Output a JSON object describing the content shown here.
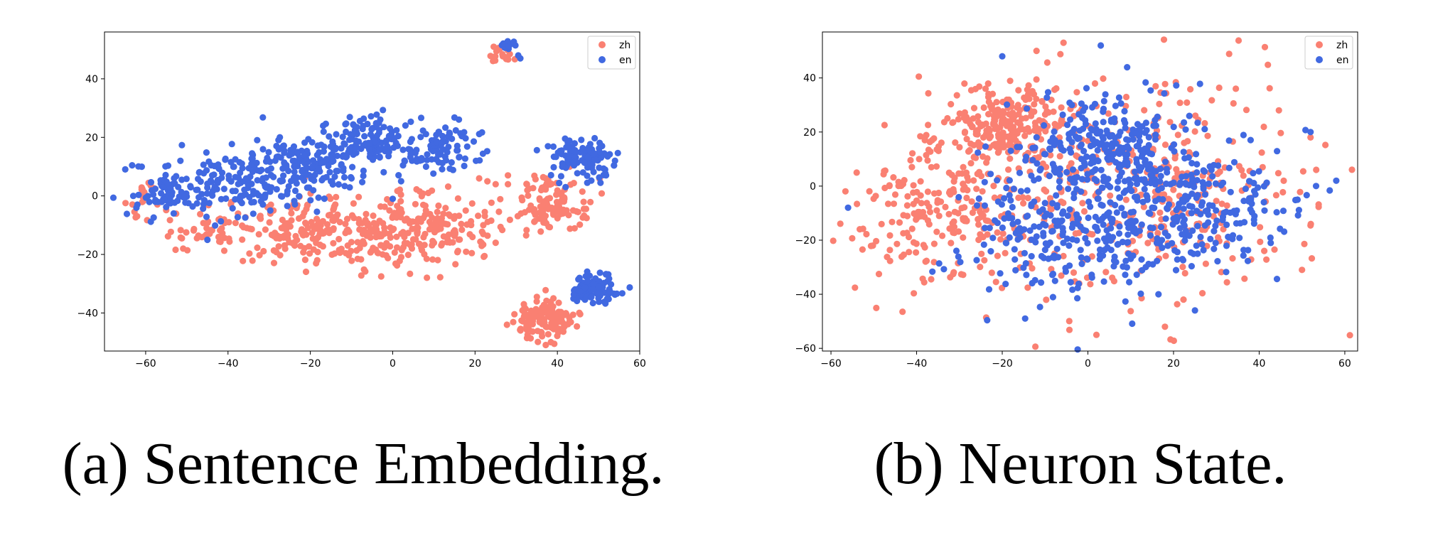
{
  "colors": {
    "zh": "#fa8072",
    "en": "#4169e1"
  },
  "chart_data": [
    {
      "type": "scatter",
      "title": "",
      "xlabel": "",
      "ylabel": "",
      "caption": "(a) Sentence Embedding.",
      "xlim": [
        -70,
        60
      ],
      "ylim": [
        -53,
        56
      ],
      "xticks": [
        -60,
        -40,
        -20,
        0,
        20,
        40,
        60
      ],
      "yticks": [
        -40,
        -20,
        0,
        20,
        40
      ],
      "xtick_labels": [
        "−60",
        "−40",
        "−20",
        "0",
        "20",
        "40",
        "60"
      ],
      "ytick_labels": [
        "−40",
        "−20",
        "0",
        "20",
        "40"
      ],
      "legend": {
        "position": "top-right",
        "entries": [
          "zh",
          "en"
        ]
      },
      "series": [
        {
          "name": "zh",
          "color": "#fa8072",
          "clusters": [
            {
              "cx": -12,
              "cy": -12,
              "sx": 17,
              "sy": 6,
              "n": 320
            },
            {
              "cx": 12,
              "cy": -10,
              "sx": 6,
              "sy": 6,
              "n": 90
            },
            {
              "cx": -45,
              "cy": -12,
              "sx": 5,
              "sy": 3,
              "n": 30
            },
            {
              "cx": -60,
              "cy": 1,
              "sx": 2,
              "sy": 4,
              "n": 18
            },
            {
              "cx": 38,
              "cy": -3,
              "sx": 5,
              "sy": 5,
              "n": 110
            },
            {
              "cx": 37,
              "cy": -42,
              "sx": 4,
              "sy": 3.5,
              "n": 120
            },
            {
              "cx": 26,
              "cy": 48,
              "sx": 1.5,
              "sy": 1.3,
              "n": 16
            }
          ],
          "points": [
            [
              21,
              6
            ],
            [
              23,
              5
            ],
            [
              25,
              4
            ],
            [
              28,
              4
            ],
            [
              22,
              -10
            ],
            [
              25,
              -16
            ],
            [
              43,
              10
            ],
            [
              28,
              7
            ]
          ]
        },
        {
          "name": "en",
          "color": "#4169e1",
          "clusters": [
            {
              "cx": -40,
              "cy": 3,
              "sx": 10,
              "sy": 5,
              "n": 170
            },
            {
              "cx": -20,
              "cy": 12,
              "sx": 8,
              "sy": 5,
              "n": 160
            },
            {
              "cx": -6,
              "cy": 19,
              "sx": 4,
              "sy": 4,
              "n": 110
            },
            {
              "cx": 12,
              "cy": 17,
              "sx": 4.5,
              "sy": 4,
              "n": 95
            },
            {
              "cx": 46,
              "cy": 13,
              "sx": 4,
              "sy": 3,
              "n": 110
            },
            {
              "cx": 49,
              "cy": -32,
              "sx": 3,
              "sy": 2.5,
              "n": 90
            },
            {
              "cx": 28,
              "cy": 51,
              "sx": 1,
              "sy": 0.9,
              "n": 14
            },
            {
              "cx": -56,
              "cy": 0,
              "sx": 4,
              "sy": 4,
              "n": 40
            }
          ],
          "points": [
            [
              31,
              47
            ],
            [
              30.5,
              48
            ],
            [
              -63,
              0
            ],
            [
              -62,
              -3
            ],
            [
              -10,
              6
            ],
            [
              -15,
              5
            ],
            [
              0,
              -1
            ],
            [
              -45,
              -15
            ],
            [
              54,
              12
            ],
            [
              42,
              3
            ]
          ]
        }
      ]
    },
    {
      "type": "scatter",
      "title": "",
      "xlabel": "",
      "ylabel": "",
      "caption": "(b) Neuron State.",
      "xlim": [
        -62,
        63
      ],
      "ylim": [
        -61,
        57
      ],
      "xticks": [
        -60,
        -40,
        -20,
        0,
        20,
        40,
        60
      ],
      "yticks": [
        -60,
        -40,
        -20,
        0,
        20,
        40
      ],
      "xtick_labels": [
        "−60",
        "−40",
        "−20",
        "0",
        "20",
        "40",
        "60"
      ],
      "ytick_labels": [
        "−60",
        "−40",
        "−20",
        "0",
        "20",
        "40"
      ],
      "legend": {
        "position": "top-right",
        "entries": [
          "zh",
          "en"
        ]
      },
      "series": [
        {
          "name": "zh",
          "color": "#fa8072",
          "clusters": [
            {
              "cx": -20,
              "cy": 22,
              "sx": 7,
              "sy": 7,
              "n": 230
            },
            {
              "cx": -35,
              "cy": -10,
              "sx": 10,
              "sy": 14,
              "n": 200
            },
            {
              "cx": 5,
              "cy": 2,
              "sx": 22,
              "sy": 22,
              "n": 320
            },
            {
              "cx": 25,
              "cy": -5,
              "sx": 10,
              "sy": 12,
              "n": 80
            }
          ],
          "points": [
            [
              2,
              -55
            ],
            [
              18,
              -52
            ],
            [
              50,
              -31
            ],
            [
              52,
              18
            ],
            [
              -54,
              5
            ],
            [
              -12,
              50
            ]
          ]
        },
        {
          "name": "en",
          "color": "#4169e1",
          "clusters": [
            {
              "cx": 5,
              "cy": 15,
              "sx": 10,
              "sy": 10,
              "n": 260
            },
            {
              "cx": -5,
              "cy": -15,
              "sx": 12,
              "sy": 12,
              "n": 260
            },
            {
              "cx": 20,
              "cy": -10,
              "sx": 10,
              "sy": 12,
              "n": 160
            },
            {
              "cx": 35,
              "cy": -5,
              "sx": 10,
              "sy": 12,
              "n": 70
            }
          ],
          "points": [
            [
              -56,
              -8
            ],
            [
              58,
              2
            ],
            [
              25,
              -46
            ],
            [
              3,
              52
            ],
            [
              -20,
              48
            ],
            [
              52,
              20
            ]
          ]
        }
      ]
    }
  ]
}
